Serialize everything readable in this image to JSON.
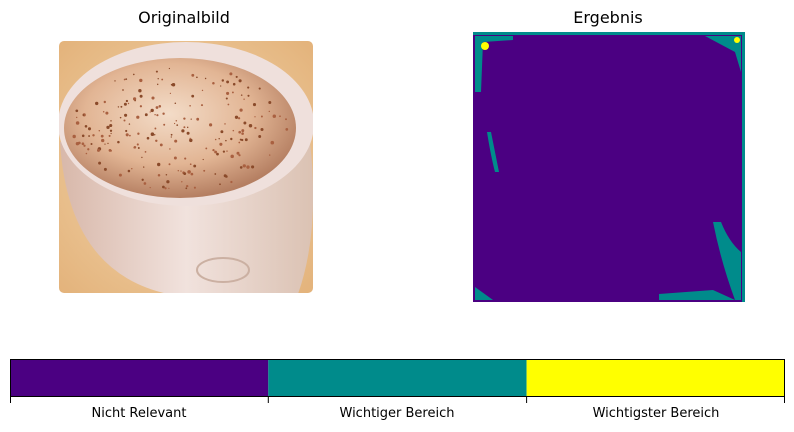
{
  "panels": {
    "left_title": "Originalbild",
    "right_title": "Ergebnis"
  },
  "colorbar": {
    "labels": [
      "Nicht Relevant",
      "Wichtiger Bereich",
      "Wichtigster Bereich"
    ],
    "colors": [
      "#4b0082",
      "#008b8b",
      "#ffff00"
    ]
  }
}
